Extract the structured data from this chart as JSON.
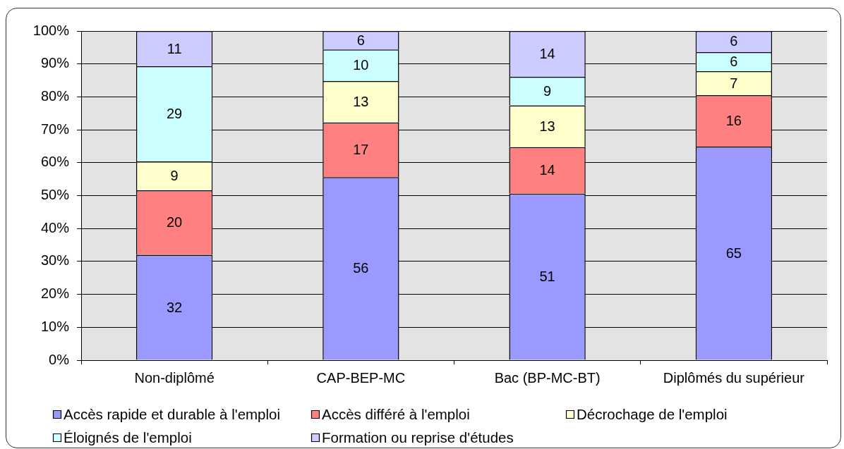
{
  "chart_data": {
    "type": "bar",
    "stacked": true,
    "categories": [
      "Non-diplômé",
      "CAP-BEP-MC",
      "Bac (BP-MC-BT)",
      "Diplômés du supérieur"
    ],
    "series": [
      {
        "name": "Accès rapide et durable à l'emploi",
        "color": "#9999ff",
        "values": [
          32.0,
          55.6,
          50.6,
          64.9
        ],
        "value_labels": [
          "32",
          "56",
          "51",
          "65"
        ]
      },
      {
        "name": "Accès différé à l'emploi",
        "color": "#ff8080",
        "values": [
          19.6,
          16.6,
          14.1,
          15.6
        ],
        "value_labels": [
          "20",
          "17",
          "14",
          "16"
        ]
      },
      {
        "name": "Décrochage de l'emploi",
        "color": "#ffffcc",
        "values": [
          8.8,
          12.6,
          12.7,
          7.3
        ],
        "value_labels": [
          "9",
          "13",
          "13",
          "7"
        ]
      },
      {
        "name": "Éloignés de l'emploi",
        "color": "#ccffff",
        "values": [
          28.9,
          9.6,
          8.7,
          5.8
        ],
        "value_labels": [
          "29",
          "10",
          "9",
          "6"
        ]
      },
      {
        "name": "Formation ou reprise d'études",
        "color": "#ccccff",
        "values": [
          10.7,
          5.6,
          13.9,
          6.4
        ],
        "value_labels": [
          "11",
          "6",
          "14",
          "6"
        ]
      }
    ],
    "ylim": [
      0,
      100
    ],
    "yticks": [
      {
        "value": 0,
        "label": "0%"
      },
      {
        "value": 10,
        "label": "10%"
      },
      {
        "value": 20,
        "label": "20%"
      },
      {
        "value": 30,
        "label": "30%"
      },
      {
        "value": 40,
        "label": "40%"
      },
      {
        "value": 50,
        "label": "50%"
      },
      {
        "value": 60,
        "label": "60%"
      },
      {
        "value": 70,
        "label": "70%"
      },
      {
        "value": 80,
        "label": "80%"
      },
      {
        "value": 90,
        "label": "90%"
      },
      {
        "value": 100,
        "label": "100%"
      }
    ],
    "grid": "y",
    "legend": "bottom"
  }
}
